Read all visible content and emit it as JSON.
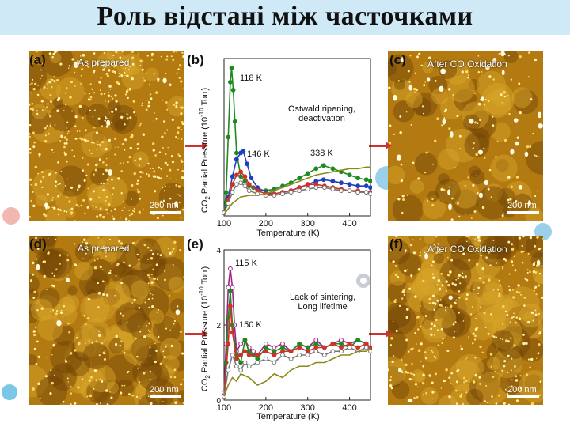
{
  "slide": {
    "title": "Роль відстані між часточками"
  },
  "panels": {
    "a": {
      "label": "(a)",
      "title": "As prepared",
      "scale": "200 nm"
    },
    "b": {
      "label": "(b)"
    },
    "c": {
      "label": "(c)",
      "title": "After CO Oxidation",
      "scale": "200 nm"
    },
    "d": {
      "label": "(d)",
      "title": "As prepared",
      "scale": "200 nm"
    },
    "e": {
      "label": "(e)"
    },
    "f": {
      "label": "(f)",
      "title": "After CO Oxidation",
      "scale": "200 nm"
    }
  },
  "annotations": {
    "b_peak1": "118 K",
    "b_peak2": "146 K",
    "b_peak3": "338 K",
    "b_note_line1": "Ostwald ripening,",
    "b_note_line2": "deactivation",
    "e_peak1": "115 K",
    "e_peak2": "150 K",
    "e_note_line1": "Lack of sintering,",
    "e_note_line2": "Long lifetime"
  },
  "colors": {
    "green": "#1f8a1f",
    "blue": "#1f3fbf",
    "red": "#d0312d",
    "olive": "#8a8a1a",
    "purple": "#a0208a",
    "gray": "#777777"
  },
  "chart_data": [
    {
      "id": "b",
      "type": "line",
      "xlabel": "Temperature (K)",
      "ylabel_parts": [
        "CO",
        "2",
        " Partial Pressure (10",
        "-10",
        " Torr)"
      ],
      "xlim": [
        100,
        450
      ],
      "ylim": [
        0,
        10
      ],
      "xticks": [
        100,
        200,
        300,
        400
      ],
      "series": [
        {
          "name": "green",
          "color": "#1f8a1f",
          "marker": "filled",
          "x": [
            100,
            105,
            110,
            115,
            118,
            122,
            126,
            130,
            140,
            150,
            160,
            170,
            180,
            200,
            220,
            240,
            260,
            280,
            300,
            320,
            338,
            360,
            380,
            400,
            420,
            440,
            450
          ],
          "y": [
            0.2,
            1.5,
            5,
            8.5,
            9.4,
            8,
            6,
            4,
            2.5,
            2.2,
            1.9,
            1.8,
            1.7,
            1.6,
            1.7,
            1.9,
            2.1,
            2.4,
            2.7,
            3.0,
            3.2,
            3.0,
            2.8,
            2.6,
            2.4,
            2.3,
            2.2
          ]
        },
        {
          "name": "blue",
          "color": "#1f3fbf",
          "marker": "filled",
          "x": [
            100,
            110,
            120,
            130,
            140,
            146,
            155,
            165,
            180,
            200,
            220,
            240,
            260,
            280,
            300,
            320,
            338,
            360,
            380,
            400,
            420,
            440,
            450
          ],
          "y": [
            0.2,
            1.2,
            2.5,
            3.6,
            4.0,
            4.1,
            3.3,
            2.4,
            1.8,
            1.5,
            1.4,
            1.5,
            1.6,
            1.8,
            2.0,
            2.2,
            2.3,
            2.2,
            2.1,
            2.0,
            1.9,
            1.9,
            1.8
          ]
        },
        {
          "name": "red",
          "color": "#d0312d",
          "marker": "filled",
          "x": [
            100,
            110,
            120,
            130,
            140,
            150,
            160,
            180,
            200,
            220,
            240,
            260,
            280,
            300,
            320,
            340,
            360,
            380,
            400,
            420,
            440,
            450
          ],
          "y": [
            0.2,
            1.0,
            2.0,
            2.6,
            2.8,
            2.5,
            2.0,
            1.6,
            1.4,
            1.4,
            1.5,
            1.6,
            1.8,
            2.0,
            2.0,
            1.9,
            1.8,
            1.7,
            1.6,
            1.6,
            1.5,
            1.5
          ]
        },
        {
          "name": "gray",
          "color": "#777777",
          "marker": "open",
          "x": [
            100,
            110,
            120,
            130,
            140,
            150,
            160,
            180,
            200,
            220,
            240,
            260,
            280,
            300,
            320,
            340,
            360,
            380,
            400,
            420,
            440,
            450
          ],
          "y": [
            0.2,
            0.8,
            1.5,
            2.0,
            2.1,
            1.9,
            1.6,
            1.4,
            1.3,
            1.3,
            1.4,
            1.5,
            1.6,
            1.7,
            1.8,
            1.8,
            1.7,
            1.6,
            1.6,
            1.5,
            1.5,
            1.4
          ]
        },
        {
          "name": "olive",
          "color": "#8a8a1a",
          "marker": "none",
          "x": [
            100,
            120,
            140,
            160,
            180,
            200,
            220,
            240,
            260,
            280,
            300,
            320,
            340,
            360,
            380,
            400,
            420,
            440,
            450
          ],
          "y": [
            0.1,
            0.8,
            1.2,
            1.3,
            1.3,
            1.4,
            1.6,
            1.8,
            2.0,
            2.2,
            2.4,
            2.6,
            2.7,
            2.8,
            2.9,
            3.0,
            3.0,
            3.1,
            3.1
          ]
        }
      ]
    },
    {
      "id": "e",
      "type": "line",
      "xlabel": "Temperature (K)",
      "ylabel_parts": [
        "CO",
        "2",
        " Partial Pressure (10",
        "-10",
        " Torr)"
      ],
      "xlim": [
        100,
        450
      ],
      "ylim": [
        0,
        4
      ],
      "xticks": [
        100,
        200,
        300,
        400
      ],
      "yticks": [
        0,
        2,
        4
      ],
      "series": [
        {
          "name": "purple",
          "color": "#a0208a",
          "marker": "open",
          "x": [
            100,
            105,
            110,
            115,
            120,
            125,
            130,
            140,
            150,
            160,
            170,
            180,
            200,
            220,
            240,
            260,
            280,
            300,
            320,
            340,
            360,
            380,
            400,
            420,
            440,
            450
          ],
          "y": [
            0.2,
            1.5,
            3.0,
            3.5,
            3.0,
            2.0,
            1.3,
            1.5,
            1.6,
            1.4,
            1.3,
            1.2,
            1.5,
            1.4,
            1.5,
            1.3,
            1.5,
            1.4,
            1.6,
            1.4,
            1.5,
            1.6,
            1.5,
            1.6,
            1.5,
            1.4
          ]
        },
        {
          "name": "green",
          "color": "#1f8a1f",
          "marker": "filled",
          "x": [
            100,
            105,
            110,
            115,
            120,
            130,
            140,
            150,
            160,
            170,
            180,
            200,
            220,
            240,
            260,
            280,
            300,
            320,
            340,
            360,
            380,
            400,
            420,
            440,
            450
          ],
          "y": [
            0.1,
            1.0,
            2.2,
            2.9,
            2.0,
            1.2,
            1.0,
            1.6,
            1.3,
            1.2,
            1.1,
            1.4,
            1.3,
            1.4,
            1.3,
            1.5,
            1.4,
            1.5,
            1.4,
            1.5,
            1.5,
            1.4,
            1.6,
            1.5,
            1.4
          ]
        },
        {
          "name": "red",
          "color": "#d0312d",
          "marker": "filled",
          "x": [
            100,
            110,
            115,
            120,
            130,
            140,
            150,
            160,
            180,
            200,
            220,
            240,
            260,
            280,
            300,
            320,
            340,
            360,
            380,
            400,
            420,
            440,
            450
          ],
          "y": [
            0.1,
            1.5,
            2.5,
            1.8,
            1.1,
            1.2,
            1.3,
            1.2,
            1.2,
            1.3,
            1.2,
            1.3,
            1.3,
            1.4,
            1.3,
            1.4,
            1.4,
            1.5,
            1.4,
            1.5,
            1.4,
            1.5,
            1.4
          ]
        },
        {
          "name": "gray",
          "color": "#777777",
          "marker": "open",
          "x": [
            100,
            110,
            120,
            130,
            140,
            150,
            160,
            180,
            200,
            220,
            240,
            260,
            280,
            300,
            320,
            340,
            360,
            380,
            400,
            420,
            440,
            450
          ],
          "y": [
            0.1,
            0.8,
            1.2,
            0.9,
            0.8,
            1.0,
            0.9,
            1.0,
            1.1,
            1.0,
            1.2,
            1.1,
            1.2,
            1.2,
            1.3,
            1.2,
            1.3,
            1.3,
            1.4,
            1.3,
            1.4,
            1.3
          ]
        },
        {
          "name": "olive",
          "color": "#8a8a1a",
          "marker": "none",
          "x": [
            100,
            110,
            120,
            130,
            140,
            160,
            180,
            200,
            220,
            240,
            260,
            280,
            300,
            320,
            340,
            360,
            380,
            400,
            420,
            440,
            450
          ],
          "y": [
            0.1,
            0.4,
            0.6,
            0.5,
            0.7,
            0.6,
            0.4,
            0.5,
            0.7,
            0.6,
            0.8,
            0.9,
            0.9,
            1.0,
            1.0,
            1.1,
            1.2,
            1.2,
            1.3,
            1.3,
            1.4
          ]
        }
      ]
    }
  ]
}
